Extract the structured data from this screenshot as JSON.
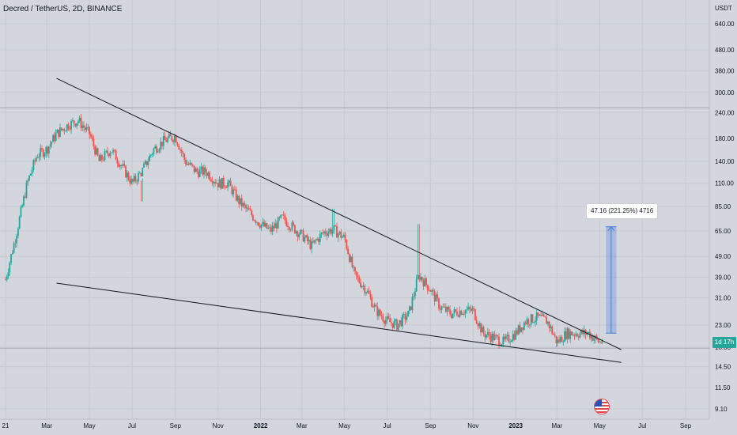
{
  "header": {
    "symbol_title": "Decred / TetherUS, 2D, BINANCE",
    "currency": "USDT"
  },
  "price_badge": "1d 17h",
  "measurement": {
    "label": "47.16 (221.25%) 4716",
    "fill_color": "#4a7bd8"
  },
  "colors": {
    "up": "#26a69a",
    "down": "#ef5350",
    "trendline": "#131722",
    "background": "#d3d6dd"
  },
  "icons": [
    "us-flag-icon"
  ],
  "chart_data": {
    "type": "candlestick",
    "title": "Decred / TetherUS, 2D, BINANCE",
    "y_scale": "log",
    "ylim": [
      8.5,
      900
    ],
    "y_ticks": [
      "640.00",
      "480.00",
      "380.00",
      "300.00",
      "240.00",
      "180.00",
      "140.00",
      "110.00",
      "85.00",
      "65.00",
      "49.00",
      "39.00",
      "31.00",
      "23.00",
      "18.00",
      "14.50",
      "11.50",
      "9.10"
    ],
    "x_ticks": [
      "21",
      "Mar",
      "May",
      "Jul",
      "Sep",
      "Nov",
      "2022",
      "Mar",
      "May",
      "Jul",
      "Sep",
      "Nov",
      "2023",
      "Mar",
      "May",
      "Jul",
      "Sep"
    ],
    "x_tick_dates": [
      "2021-01-01",
      "2021-03-01",
      "2021-05-01",
      "2021-07-01",
      "2021-09-01",
      "2021-11-01",
      "2022-01-01",
      "2022-03-01",
      "2022-05-01",
      "2022-07-01",
      "2022-09-01",
      "2022-11-01",
      "2023-01-01",
      "2023-03-01",
      "2023-05-01",
      "2023-07-01",
      "2023-09-01"
    ],
    "price_path": [
      [
        "2021-01-01",
        38
      ],
      [
        "2021-01-15",
        60
      ],
      [
        "2021-02-01",
        110
      ],
      [
        "2021-02-15",
        150
      ],
      [
        "2021-03-01",
        160
      ],
      [
        "2021-03-15",
        190
      ],
      [
        "2021-04-01",
        210
      ],
      [
        "2021-04-15",
        220
      ],
      [
        "2021-05-01",
        190
      ],
      [
        "2021-05-15",
        140
      ],
      [
        "2021-06-01",
        160
      ],
      [
        "2021-06-15",
        135
      ],
      [
        "2021-07-01",
        110
      ],
      [
        "2021-07-15",
        125
      ],
      [
        "2021-08-01",
        160
      ],
      [
        "2021-08-15",
        175
      ],
      [
        "2021-09-01",
        185
      ],
      [
        "2021-09-15",
        140
      ],
      [
        "2021-10-01",
        125
      ],
      [
        "2021-10-15",
        125
      ],
      [
        "2021-11-01",
        110
      ],
      [
        "2021-11-15",
        110
      ],
      [
        "2021-12-01",
        90
      ],
      [
        "2021-12-15",
        80
      ],
      [
        "2022-01-01",
        70
      ],
      [
        "2022-01-15",
        65
      ],
      [
        "2022-02-01",
        75
      ],
      [
        "2022-02-15",
        68
      ],
      [
        "2022-03-01",
        62
      ],
      [
        "2022-03-15",
        55
      ],
      [
        "2022-04-01",
        64
      ],
      [
        "2022-04-15",
        66
      ],
      [
        "2022-05-01",
        60
      ],
      [
        "2022-05-15",
        40
      ],
      [
        "2022-06-01",
        34
      ],
      [
        "2022-06-15",
        27
      ],
      [
        "2022-07-01",
        24
      ],
      [
        "2022-07-15",
        23
      ],
      [
        "2022-08-01",
        26
      ],
      [
        "2022-08-15",
        40
      ],
      [
        "2022-09-01",
        34
      ],
      [
        "2022-09-15",
        28
      ],
      [
        "2022-10-01",
        26
      ],
      [
        "2022-10-15",
        27
      ],
      [
        "2022-11-01",
        27
      ],
      [
        "2022-11-15",
        21
      ],
      [
        "2022-12-01",
        20
      ],
      [
        "2022-12-15",
        19
      ],
      [
        "2023-01-01",
        21
      ],
      [
        "2023-01-15",
        24
      ],
      [
        "2023-02-01",
        25
      ],
      [
        "2023-02-15",
        24
      ],
      [
        "2023-03-01",
        19
      ],
      [
        "2023-03-15",
        21
      ],
      [
        "2023-04-01",
        21
      ],
      [
        "2023-04-15",
        21
      ],
      [
        "2023-05-01",
        19
      ],
      [
        "2023-05-06",
        19.5
      ]
    ],
    "spikes": [
      {
        "date": "2022-08-15",
        "high": 70
      },
      {
        "date": "2022-04-15",
        "high": 83
      },
      {
        "date": "2021-07-15",
        "high": 90
      }
    ],
    "resistance_line": {
      "from": [
        "2021-03-15",
        350
      ],
      "to": [
        "2023-06-01",
        17.5
      ]
    },
    "support_line": {
      "from": [
        "2021-03-15",
        36.5
      ],
      "to": [
        "2023-06-01",
        15.2
      ]
    },
    "h_lines": [
      253,
      17.8
    ],
    "measure": {
      "from_date": "2023-05-10",
      "to_date": "2023-05-25",
      "low": 21,
      "high": 68
    }
  }
}
